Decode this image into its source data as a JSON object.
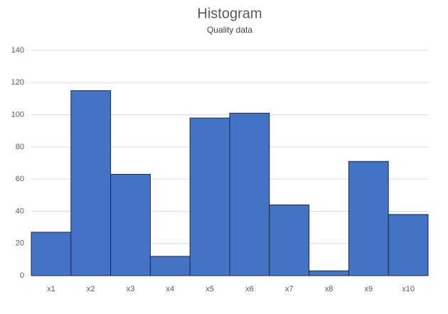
{
  "chart_data": {
    "type": "bar",
    "title": "Histogram",
    "subtitle": "Quality data",
    "categories": [
      "x1",
      "x2",
      "x3",
      "x4",
      "x5",
      "x6",
      "x7",
      "x8",
      "x9",
      "x10"
    ],
    "values": [
      27,
      115,
      63,
      12,
      98,
      101,
      44,
      3,
      71,
      38
    ],
    "color": "#4472c4",
    "ylim": [
      0,
      140
    ],
    "yticks": [
      0,
      20,
      40,
      60,
      80,
      100,
      120,
      140
    ],
    "grid": true
  }
}
